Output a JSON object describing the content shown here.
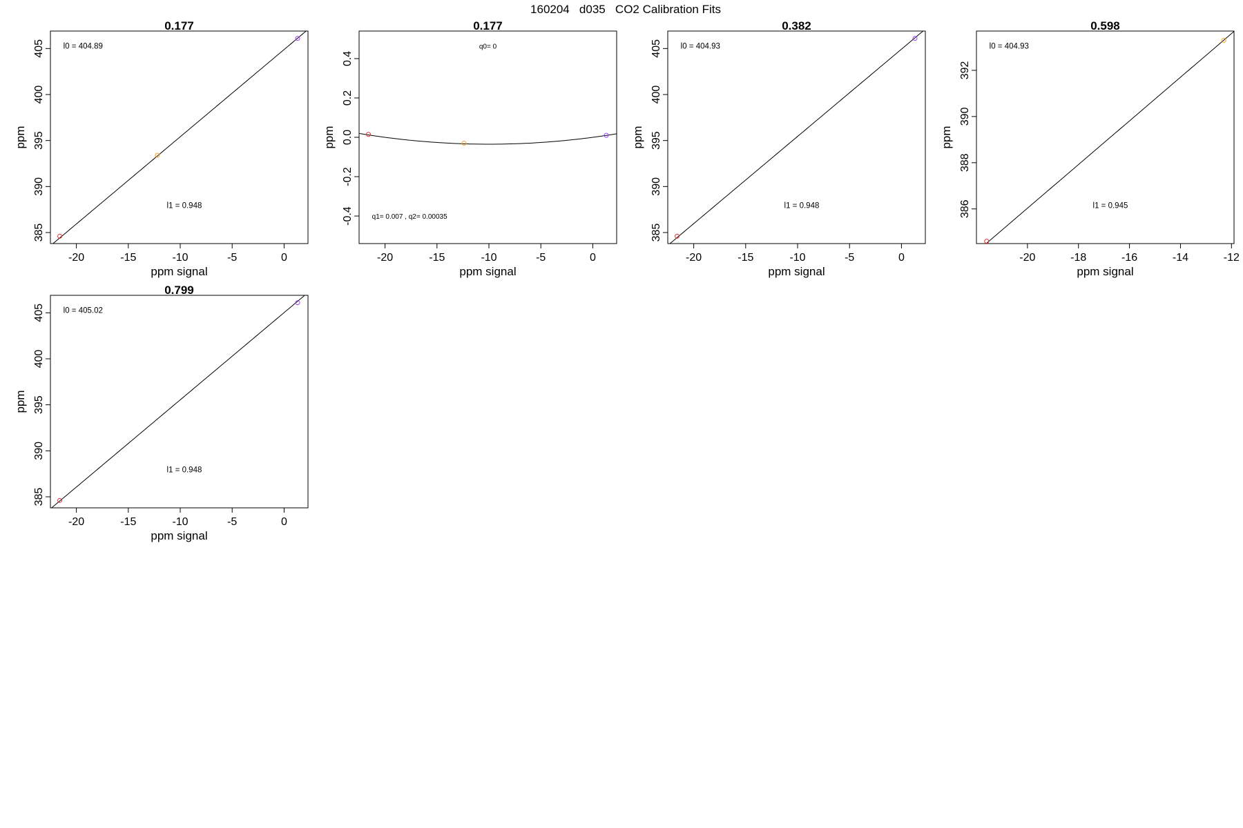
{
  "figure": {
    "title": "160204   d035   CO2 Calibration Fits"
  },
  "chart_data": [
    {
      "type": "scatter",
      "title": "0.177",
      "xlabel": "ppm signal",
      "ylabel": "ppm",
      "xlim": [
        -22.5,
        2.3
      ],
      "ylim": [
        383.8,
        406.9
      ],
      "xticks": [
        -20,
        -15,
        -10,
        -5,
        0
      ],
      "xtick_labels": [
        "-20",
        "-15",
        "-10",
        "-5",
        "0"
      ],
      "yticks": [
        385,
        390,
        395,
        400,
        405
      ],
      "ytick_labels": [
        "385",
        "390",
        "395",
        "400",
        "405"
      ],
      "points": [
        {
          "x": -21.6,
          "y": 384.6,
          "color": "#e03030"
        },
        {
          "x": -12.2,
          "y": 393.4,
          "color": "#f0a020"
        },
        {
          "x": 1.3,
          "y": 406.1,
          "color": "#a040ff"
        }
      ],
      "fit": {
        "kind": "linear",
        "intercept": 404.89,
        "slope": 0.948
      },
      "annotations": [
        {
          "text": "l0 =  404.89",
          "pos": "top-left"
        },
        {
          "text": "l1 =  0.948",
          "pos": "lower-center"
        }
      ],
      "grid": false
    },
    {
      "type": "scatter",
      "title": "0.177",
      "xlabel": "ppm signal",
      "ylabel": "ppm",
      "xlim": [
        -22.5,
        2.3
      ],
      "ylim": [
        -0.54,
        0.54
      ],
      "xticks": [
        -20,
        -15,
        -10,
        -5,
        0
      ],
      "xtick_labels": [
        "-20",
        "-15",
        "-10",
        "-5",
        "0"
      ],
      "yticks": [
        -0.4,
        -0.2,
        0.0,
        0.2,
        0.4
      ],
      "ytick_labels": [
        "-0.4",
        "-0.2",
        "0.0",
        "0.2",
        "0.4"
      ],
      "points": [
        {
          "x": -21.6,
          "y": 0.015,
          "color": "#e03030"
        },
        {
          "x": -12.4,
          "y": -0.03,
          "color": "#f0a020"
        },
        {
          "x": 1.3,
          "y": 0.01,
          "color": "#a040ff"
        }
      ],
      "fit": {
        "kind": "quadratic",
        "q0": 0,
        "q1": 0.007,
        "q2": 0.00035
      },
      "annotations": [
        {
          "text": "q0= 0",
          "pos": "top-center"
        },
        {
          "text": "q1= 0.007 , q2= 0.00035",
          "pos": "bottom-left"
        }
      ],
      "grid": false
    },
    {
      "type": "scatter",
      "title": "0.382",
      "xlabel": "ppm signal",
      "ylabel": "ppm",
      "xlim": [
        -22.5,
        2.3
      ],
      "ylim": [
        383.8,
        406.9
      ],
      "xticks": [
        -20,
        -15,
        -10,
        -5,
        0
      ],
      "xtick_labels": [
        "-20",
        "-15",
        "-10",
        "-5",
        "0"
      ],
      "yticks": [
        385,
        390,
        395,
        400,
        405
      ],
      "ytick_labels": [
        "385",
        "390",
        "395",
        "400",
        "405"
      ],
      "points": [
        {
          "x": -21.6,
          "y": 384.6,
          "color": "#e03030"
        },
        {
          "x": 1.3,
          "y": 406.1,
          "color": "#a040ff"
        }
      ],
      "fit": {
        "kind": "linear",
        "intercept": 404.93,
        "slope": 0.948
      },
      "annotations": [
        {
          "text": "l0 =  404.93",
          "pos": "top-left"
        },
        {
          "text": "l1 =  0.948",
          "pos": "lower-center"
        }
      ],
      "grid": false
    },
    {
      "type": "scatter",
      "title": "0.598",
      "xlabel": "ppm signal",
      "ylabel": "ppm",
      "xlim": [
        -22.0,
        -11.9
      ],
      "ylim": [
        384.5,
        393.7
      ],
      "xticks": [
        -20,
        -18,
        -16,
        -14,
        -12
      ],
      "xtick_labels": [
        "-20",
        "-18",
        "-16",
        "-14",
        "-12"
      ],
      "yticks": [
        386,
        388,
        390,
        392
      ],
      "ytick_labels": [
        "386",
        "388",
        "390",
        "392"
      ],
      "points": [
        {
          "x": -21.6,
          "y": 384.6,
          "color": "#e03030"
        },
        {
          "x": -12.3,
          "y": 393.3,
          "color": "#f0a020"
        }
      ],
      "fit": {
        "kind": "linear",
        "intercept": 404.93,
        "slope": 0.945
      },
      "annotations": [
        {
          "text": "l0 =  404.93",
          "pos": "top-left"
        },
        {
          "text": "l1 =  0.945",
          "pos": "lower-center"
        }
      ],
      "grid": false
    },
    {
      "type": "scatter",
      "title": "0.799",
      "xlabel": "ppm signal",
      "ylabel": "ppm",
      "xlim": [
        -22.5,
        2.3
      ],
      "ylim": [
        383.8,
        406.9
      ],
      "xticks": [
        -20,
        -15,
        -10,
        -5,
        0
      ],
      "xtick_labels": [
        "-20",
        "-15",
        "-10",
        "-5",
        "0"
      ],
      "yticks": [
        385,
        390,
        395,
        400,
        405
      ],
      "ytick_labels": [
        "385",
        "390",
        "395",
        "400",
        "405"
      ],
      "points": [
        {
          "x": -21.6,
          "y": 384.6,
          "color": "#e03030"
        },
        {
          "x": 1.3,
          "y": 406.1,
          "color": "#a040ff"
        }
      ],
      "fit": {
        "kind": "linear",
        "intercept": 405.02,
        "slope": 0.948
      },
      "annotations": [
        {
          "text": "l0 =  405.02",
          "pos": "top-left"
        },
        {
          "text": "l1 =  0.948",
          "pos": "lower-center"
        }
      ],
      "grid": false
    }
  ]
}
